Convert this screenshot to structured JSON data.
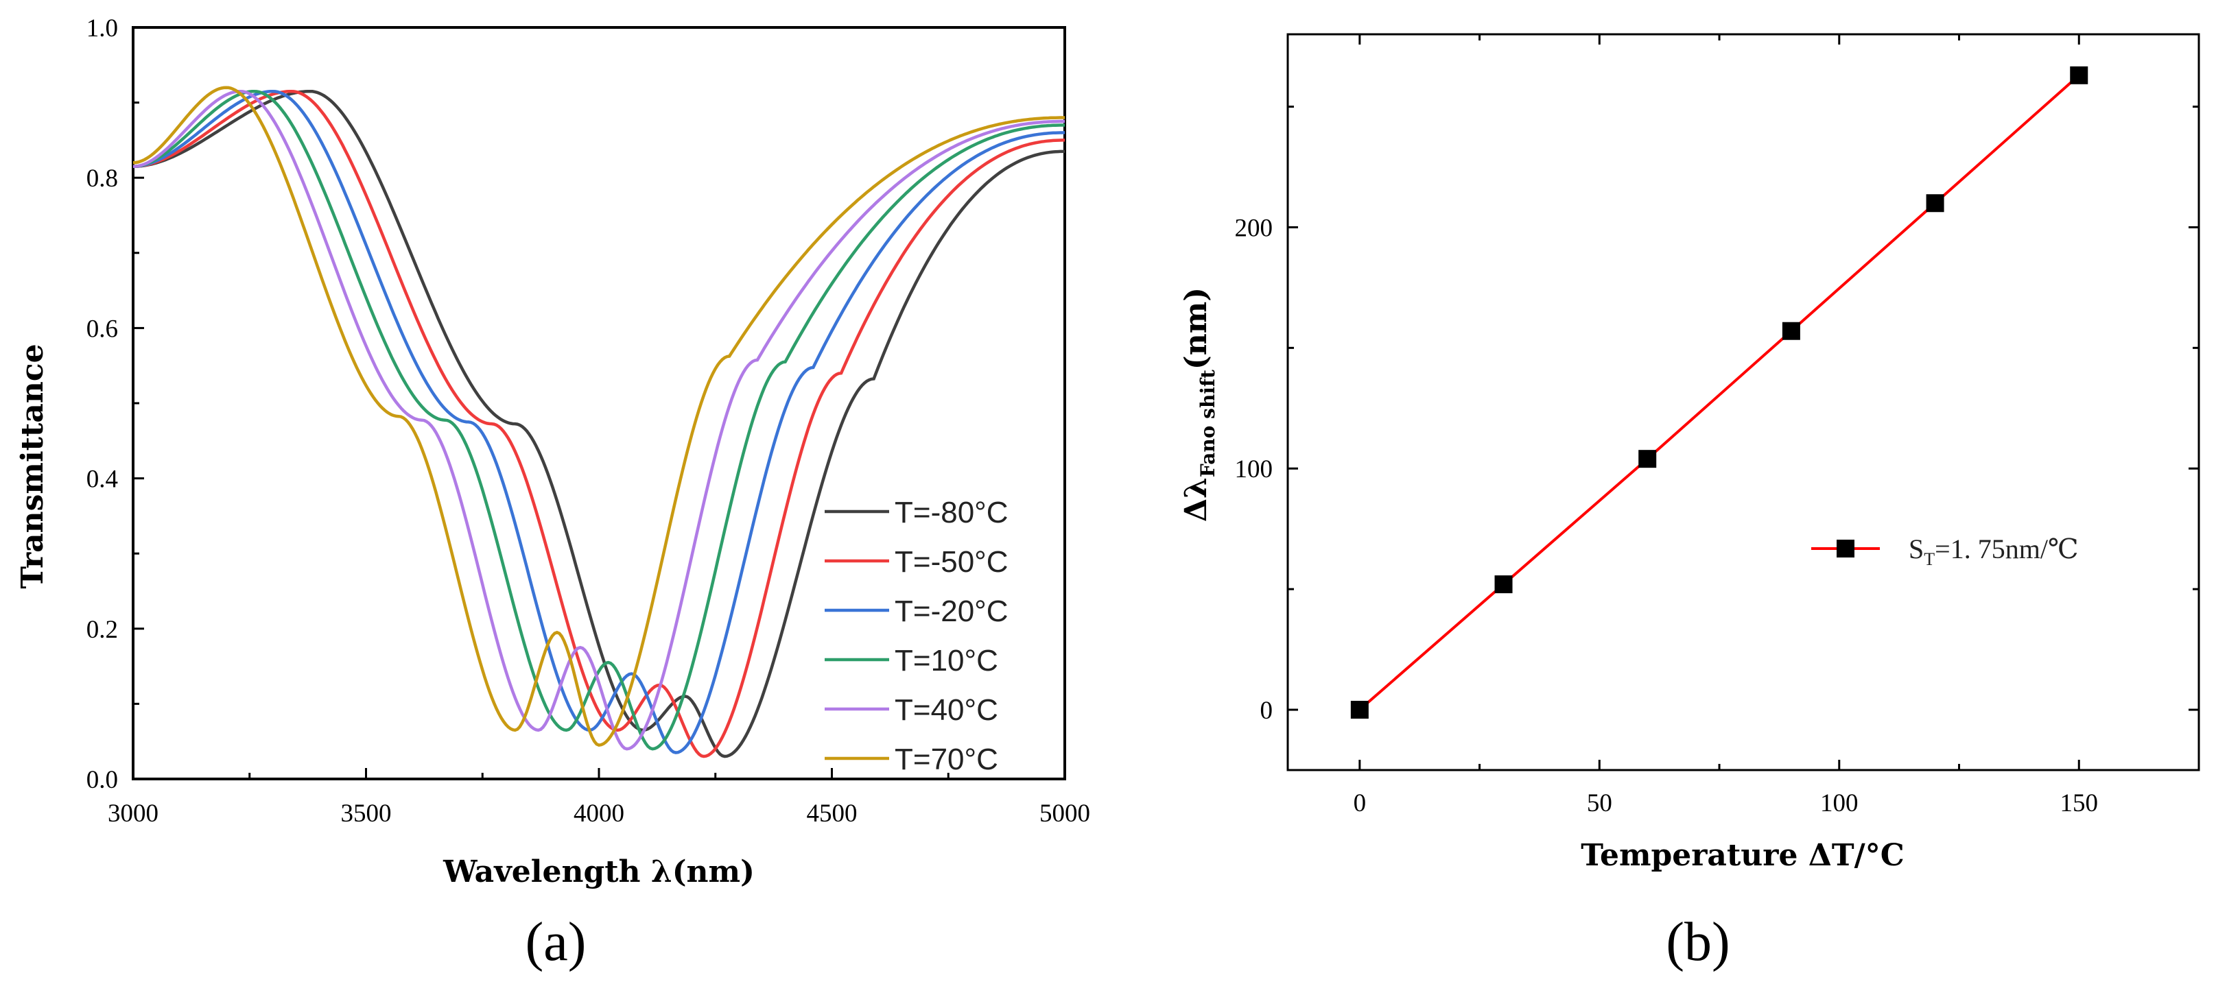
{
  "chart_data": [
    {
      "type": "line",
      "panel_label": "(a)",
      "xlabel": "Wavelength λ(nm)",
      "ylabel": "Transmittance",
      "xlim": [
        3000,
        5000
      ],
      "ylim": [
        0.0,
        1.0
      ],
      "xticks": [
        "3000",
        "3500",
        "4000",
        "4500",
        "5000"
      ],
      "yticks": [
        "0.0",
        "0.2",
        "0.4",
        "0.6",
        "0.8",
        "1.0"
      ],
      "legend_position": "bottom-right",
      "series": [
        {
          "name": "T=-80°C",
          "color": "#404040",
          "dip_nm": 4270,
          "min": 0.03,
          "peak_nm": 4185,
          "peak": 0.11,
          "left_half_nm": 3820,
          "right_half_nm": 4590,
          "plateau": 0.915,
          "plateau_nm": 3380,
          "end": 0.835
        },
        {
          "name": "T=-50°C",
          "color": "#ef3b3b",
          "dip_nm": 4225,
          "min": 0.03,
          "peak_nm": 4130,
          "peak": 0.125,
          "left_half_nm": 3770,
          "right_half_nm": 4520,
          "plateau": 0.915,
          "plateau_nm": 3340,
          "end": 0.85
        },
        {
          "name": "T=-20°C",
          "color": "#3a74d6",
          "dip_nm": 4165,
          "min": 0.035,
          "peak_nm": 4070,
          "peak": 0.14,
          "left_half_nm": 3720,
          "right_half_nm": 4460,
          "plateau": 0.915,
          "plateau_nm": 3300,
          "end": 0.86
        },
        {
          "name": "T=10°C",
          "color": "#2e9e6a",
          "dip_nm": 4115,
          "min": 0.04,
          "peak_nm": 4020,
          "peak": 0.155,
          "left_half_nm": 3670,
          "right_half_nm": 4400,
          "plateau": 0.915,
          "plateau_nm": 3260,
          "end": 0.87
        },
        {
          "name": "T=40°C",
          "color": "#b07be6",
          "dip_nm": 4060,
          "min": 0.04,
          "peak_nm": 3960,
          "peak": 0.175,
          "left_half_nm": 3620,
          "right_half_nm": 4340,
          "plateau": 0.915,
          "plateau_nm": 3230,
          "end": 0.875
        },
        {
          "name": "T=70°C",
          "color": "#c99a12",
          "dip_nm": 4000,
          "min": 0.045,
          "peak_nm": 3910,
          "peak": 0.195,
          "left_half_nm": 3570,
          "right_half_nm": 4280,
          "plateau": 0.92,
          "plateau_nm": 3200,
          "end": 0.88
        }
      ]
    },
    {
      "type": "line",
      "panel_label": "(b)",
      "xlabel": "Temperature  ΔT/°C",
      "ylabel_main": "Δλ",
      "ylabel_sub": "Fano shift",
      "ylabel_unit": "(nm)",
      "xlim": [
        -15,
        175
      ],
      "ylim": [
        -25,
        280
      ],
      "xticks": [
        "0",
        "50",
        "100",
        "150"
      ],
      "yticks": [
        "0",
        "100",
        "200"
      ],
      "legend_position": "middle-right",
      "series": [
        {
          "name": "ST=1.75nm/°C",
          "legend_main": "S",
          "legend_sub": "T",
          "legend_rest": "=1. 75nm/℃",
          "color": "#ff0000",
          "marker_color": "#000000",
          "x": [
            0,
            30,
            60,
            90,
            120,
            150
          ],
          "y": [
            0,
            52,
            104,
            157,
            210,
            263
          ]
        }
      ]
    }
  ]
}
